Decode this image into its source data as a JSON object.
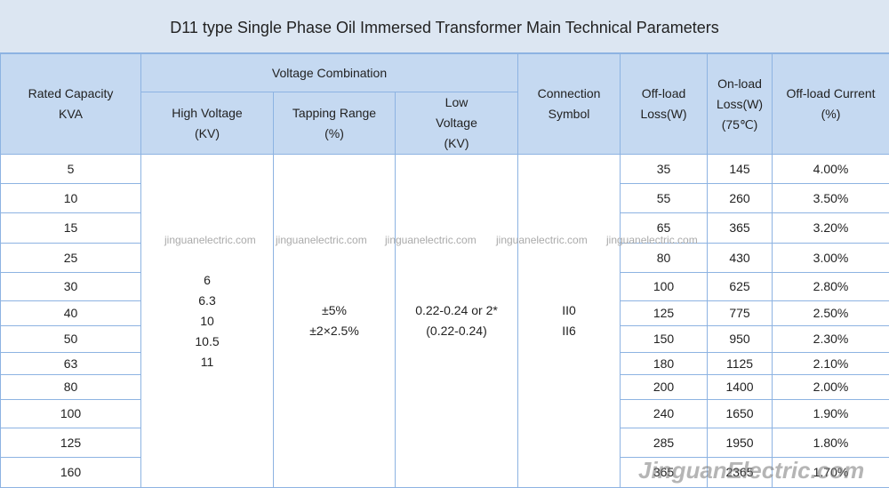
{
  "title": "D11 type Single Phase Oil Immersed Transformer Main Technical Parameters",
  "header": {
    "rated_capacity": "Rated Capacity\nKVA",
    "voltage_combination": "Voltage Combination",
    "high_voltage": "High Voltage\n(KV)",
    "tapping_range": "Tapping Range\n(%)",
    "low_voltage": "Low\nVoltage\n(KV)",
    "connection_symbol": "Connection\nSymbol",
    "off_load_loss": "Off-load\nLoss(W)",
    "on_load_loss": "On-load\nLoss(W)\n(75℃)",
    "off_load_current": "Off-load Current\n(%)"
  },
  "body": {
    "high_voltage": [
      "6",
      "6.3",
      "10",
      "10.5",
      "11"
    ],
    "tapping_range": [
      "±5%",
      "±2×2.5%"
    ],
    "low_voltage": "0.22-0.24 or 2*(0.22-0.24)",
    "connection_symbol": [
      "II0",
      "II6"
    ],
    "rows": [
      [
        "5",
        "35",
        "145",
        "4.00%"
      ],
      [
        "10",
        "55",
        "260",
        "3.50%"
      ],
      [
        "15",
        "65",
        "365",
        "3.20%"
      ],
      [
        "25",
        "80",
        "430",
        "3.00%"
      ],
      [
        "30",
        "100",
        "625",
        "2.80%"
      ],
      [
        "40",
        "125",
        "775",
        "2.50%"
      ],
      [
        "50",
        "150",
        "950",
        "2.30%"
      ],
      [
        "63",
        "180",
        "1125",
        "2.10%"
      ],
      [
        "80",
        "200",
        "1400",
        "2.00%"
      ],
      [
        "100",
        "240",
        "1650",
        "1.90%"
      ],
      [
        "125",
        "285",
        "1950",
        "1.80%"
      ],
      [
        "160",
        "365",
        "2365",
        "1.70%"
      ]
    ]
  },
  "watermarks": [
    "jinguanelectric.com",
    "jinguanelectric.com",
    "jinguanelectric.com",
    "jinguanelectric.com",
    "jinguanelectric.com"
  ],
  "logo_watermark": "JinguanElectric.com"
}
